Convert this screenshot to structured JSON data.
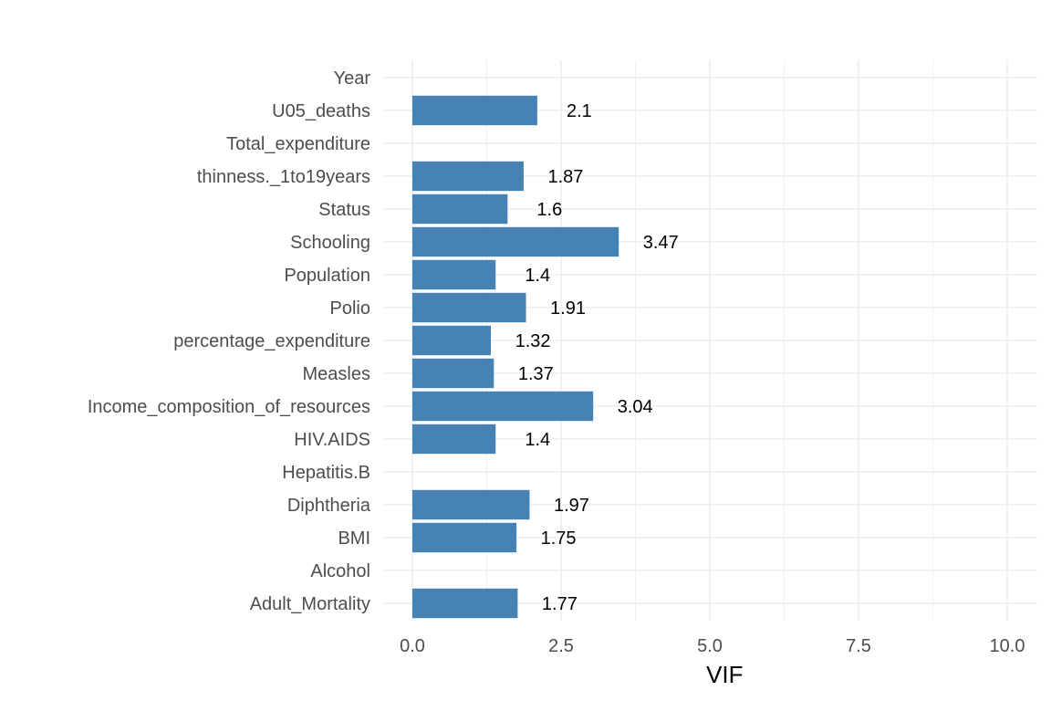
{
  "chart_data": {
    "type": "bar",
    "orientation": "horizontal",
    "categories": [
      "Year",
      "U05_deaths",
      "Total_expenditure",
      "thinness._1to19years",
      "Status",
      "Schooling",
      "Population",
      "Polio",
      "percentage_expenditure",
      "Measles",
      "Income_composition_of_resources",
      "HIV.AIDS",
      "Hepatitis.B",
      "Diphtheria",
      "BMI",
      "Alcohol",
      "Adult_Mortality"
    ],
    "values": [
      null,
      2.1,
      null,
      1.87,
      1.6,
      3.47,
      1.4,
      1.91,
      1.32,
      1.37,
      3.04,
      1.4,
      null,
      1.97,
      1.75,
      null,
      1.77
    ],
    "value_labels": [
      "",
      "2.1",
      "",
      "1.87",
      "1.6",
      "3.47",
      "1.4",
      "1.91",
      "1.32",
      "1.37",
      "3.04",
      "1.4",
      "",
      "1.97",
      "1.75",
      "",
      "1.77"
    ],
    "title": "",
    "xlabel": "VIF",
    "ylabel": "",
    "xlim": [
      0,
      10.5
    ],
    "xticks": [
      0,
      2.5,
      5,
      7.5,
      10
    ],
    "xtick_labels": [
      "0.0",
      "2.5",
      "5.0",
      "7.5",
      "10.0"
    ],
    "grid": true,
    "legend": "none",
    "bar_color": "#4682B4",
    "grid_color": "#ebebeb"
  }
}
